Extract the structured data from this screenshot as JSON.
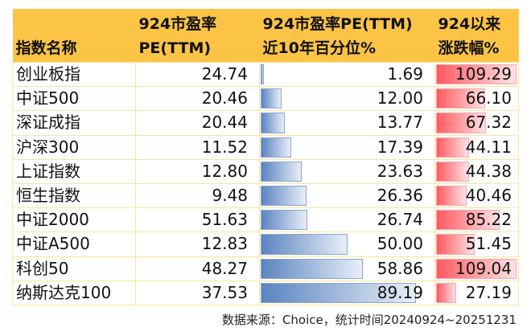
{
  "table": {
    "headers": [
      {
        "line1": "",
        "line2": "指数名称"
      },
      {
        "line1": "924市盈率",
        "line2": "PE(TTM)"
      },
      {
        "line1": "924市盈率PE(TTM)",
        "line2": "近10年百分位%"
      },
      {
        "line1": "924以来",
        "line2": "涨跌幅%"
      }
    ],
    "rows": [
      {
        "name": "创业板指",
        "pe": "24.74",
        "pct": "1.69",
        "chg": "109.29"
      },
      {
        "name": "中证500",
        "pe": "20.46",
        "pct": "12.00",
        "chg": "66.10"
      },
      {
        "name": "深证成指",
        "pe": "20.44",
        "pct": "13.77",
        "chg": "67.32"
      },
      {
        "name": "沪深300",
        "pe": "11.52",
        "pct": "17.39",
        "chg": "44.11"
      },
      {
        "name": "上证指数",
        "pe": "12.80",
        "pct": "23.63",
        "chg": "44.38"
      },
      {
        "name": "恒生指数",
        "pe": "9.48",
        "pct": "26.36",
        "chg": "40.46"
      },
      {
        "name": "中证2000",
        "pe": "51.63",
        "pct": "26.74",
        "chg": "85.22"
      },
      {
        "name": "中证A500",
        "pe": "12.83",
        "pct": "50.00",
        "chg": "51.45"
      },
      {
        "name": "科创50",
        "pe": "48.27",
        "pct": "58.86",
        "chg": "109.04"
      },
      {
        "name": "纳斯达克100",
        "pe": "37.53",
        "pct": "89.19",
        "chg": "27.19"
      }
    ]
  },
  "colors": {
    "header_bg": "#fcc445",
    "grid": "#fde39a",
    "pct_bar": "#5b84c1",
    "chg_bar": "#ff5a5f"
  },
  "footer": {
    "source": "数据来源：Choice，统计时间20240924~20251231"
  }
}
